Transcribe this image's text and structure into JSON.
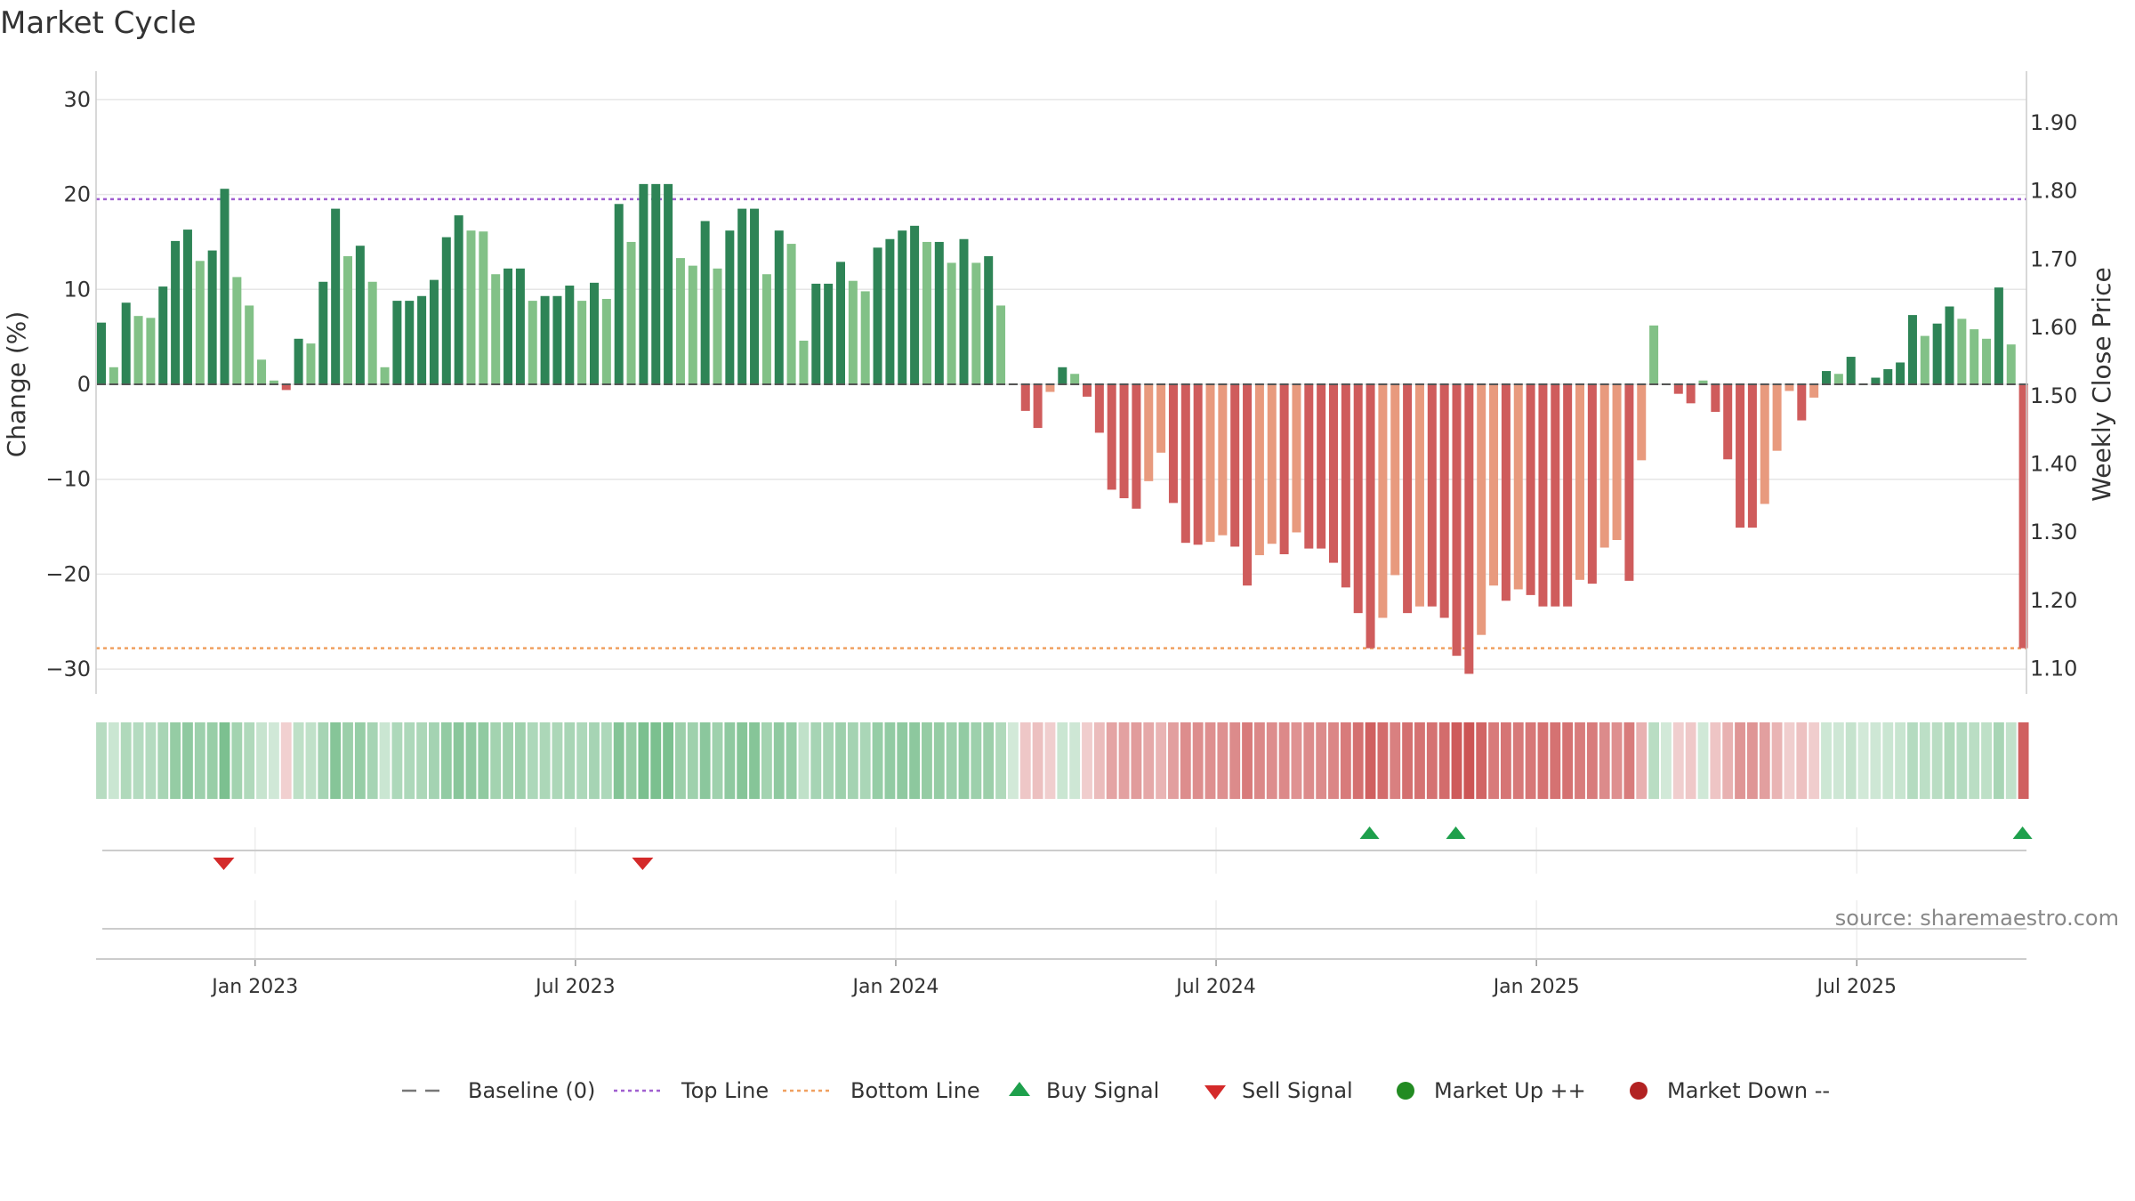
{
  "chart_data": {
    "type": "bar",
    "title": "Market Cycle",
    "ylabel_left": "Change (%)",
    "ylabel_right": "Weekly Close Price",
    "source": "source: sharemaestro.com",
    "y_left_ticks": [
      "30",
      "20",
      "10",
      "0",
      "−10",
      "−20",
      "−30"
    ],
    "y_left_range": [
      -33,
      33
    ],
    "y_right_ticks": [
      "1.90",
      "1.80",
      "1.70",
      "1.60",
      "1.50",
      "1.40",
      "1.30",
      "1.20",
      "1.10"
    ],
    "x_ticks": [
      {
        "label": "Jan 2023",
        "week": 15
      },
      {
        "label": "Jul 2023",
        "week": 41
      },
      {
        "label": "Jan 2024",
        "week": 67
      },
      {
        "label": "Jul 2024",
        "week": 93
      },
      {
        "label": "Jan 2025",
        "week": 119
      },
      {
        "label": "Jul 2025",
        "week": 145
      }
    ],
    "top_line": 19.5,
    "bottom_line": -27.8,
    "values": [
      6.5,
      1.8,
      8.6,
      7.2,
      7.0,
      10.3,
      15.1,
      16.3,
      13.0,
      14.1,
      20.6,
      11.3,
      8.3,
      2.6,
      0.4,
      -0.6,
      4.8,
      4.3,
      10.8,
      18.5,
      13.5,
      14.6,
      10.8,
      1.8,
      8.8,
      8.8,
      9.3,
      11.0,
      15.5,
      17.8,
      16.2,
      16.1,
      11.6,
      12.2,
      12.2,
      8.8,
      9.3,
      9.3,
      10.4,
      8.8,
      10.7,
      9.0,
      19.0,
      15.0,
      21.1,
      21.1,
      21.1,
      13.3,
      12.5,
      17.2,
      12.2,
      16.2,
      18.5,
      18.5,
      11.6,
      16.2,
      14.8,
      4.6,
      10.6,
      10.6,
      12.9,
      10.9,
      9.8,
      14.4,
      15.3,
      16.2,
      16.7,
      15.0,
      15.0,
      12.8,
      15.3,
      12.8,
      13.5,
      8.3,
      0.1,
      -2.8,
      -4.6,
      -0.8,
      1.8,
      1.1,
      -1.3,
      -5.1,
      -11.1,
      -12.0,
      -13.1,
      -10.2,
      -7.2,
      -12.5,
      -16.7,
      -16.9,
      -16.6,
      -15.9,
      -17.1,
      -21.2,
      -18.0,
      -16.8,
      -17.9,
      -15.6,
      -17.3,
      -17.3,
      -18.8,
      -21.4,
      -24.1,
      -27.8,
      -24.6,
      -20.1,
      -24.1,
      -23.4,
      -23.4,
      -24.6,
      -28.6,
      -30.5,
      -26.4,
      -21.2,
      -22.8,
      -21.6,
      -22.2,
      -23.4,
      -23.4,
      -23.4,
      -20.6,
      -21.0,
      -17.2,
      -16.4,
      -20.7,
      -8.0,
      6.2,
      0.1,
      -1.0,
      -2.0,
      0.4,
      -2.9,
      -7.9,
      -15.1,
      -15.1,
      -12.6,
      -7.0,
      -0.7,
      -3.8,
      -1.4,
      1.4,
      1.1,
      2.9,
      0.1,
      0.7,
      1.6,
      2.3,
      7.3,
      5.1,
      6.4,
      8.2,
      6.9,
      5.8,
      4.8,
      10.2,
      4.2,
      -27.8
    ],
    "heat_strip": true,
    "buy_signals_week": [
      103,
      110,
      156
    ],
    "sell_signals_week": [
      10,
      44
    ],
    "series_colors": {
      "up_strong": "#2e8456",
      "up_light": "#82c187",
      "down_strong": "#cf5c5c",
      "down_light": "#e89a7e",
      "top_line": "#a05fd0",
      "bottom_line": "#f0a060",
      "buy": "#1ea04c",
      "sell": "#d42a2a",
      "market_up": "#228b22",
      "market_down": "#b22222"
    },
    "legend": [
      {
        "label": "Baseline (0)",
        "marker": "dash"
      },
      {
        "label": "Top Line",
        "marker": "dot-purple"
      },
      {
        "label": "Bottom Line",
        "marker": "dot-orange"
      },
      {
        "label": "Buy Signal",
        "marker": "triangle-up"
      },
      {
        "label": "Sell Signal",
        "marker": "triangle-down"
      },
      {
        "label": "Market Up ++",
        "marker": "circle-green"
      },
      {
        "label": "Market Down --",
        "marker": "circle-red"
      }
    ]
  }
}
